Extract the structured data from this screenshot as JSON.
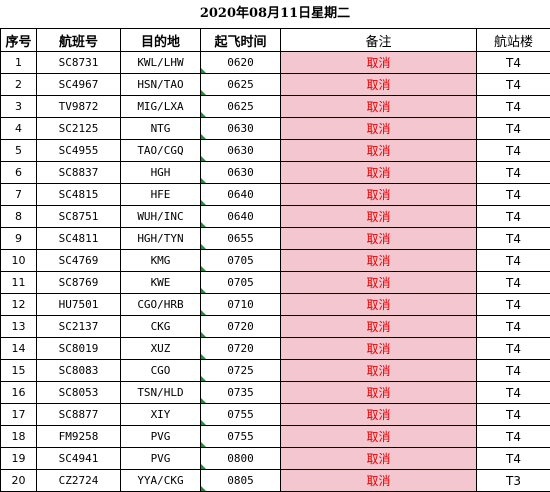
{
  "title": "2020年08月11日星期二",
  "headers": {
    "index": "序号",
    "flight": "航班号",
    "destination": "目的地",
    "departure": "起飞时间",
    "remarks": "备注",
    "terminal": "航站楼"
  },
  "colors": {
    "remarks_bg": "#f4c6cf",
    "remarks_text": "#e60000",
    "time_marker": "#1f8f3a"
  },
  "rows": [
    {
      "index": "1",
      "flight": "SC8731",
      "destination": "KWL/LHW",
      "departure": "0620",
      "remarks": "取消",
      "terminal": "T4"
    },
    {
      "index": "2",
      "flight": "SC4967",
      "destination": "HSN/TAO",
      "departure": "0625",
      "remarks": "取消",
      "terminal": "T4"
    },
    {
      "index": "3",
      "flight": "TV9872",
      "destination": "MIG/LXA",
      "departure": "0625",
      "remarks": "取消",
      "terminal": "T4"
    },
    {
      "index": "4",
      "flight": "SC2125",
      "destination": "NTG",
      "departure": "0630",
      "remarks": "取消",
      "terminal": "T4"
    },
    {
      "index": "5",
      "flight": "SC4955",
      "destination": "TAO/CGQ",
      "departure": "0630",
      "remarks": "取消",
      "terminal": "T4"
    },
    {
      "index": "6",
      "flight": "SC8837",
      "destination": "HGH",
      "departure": "0630",
      "remarks": "取消",
      "terminal": "T4"
    },
    {
      "index": "7",
      "flight": "SC4815",
      "destination": "HFE",
      "departure": "0640",
      "remarks": "取消",
      "terminal": "T4"
    },
    {
      "index": "8",
      "flight": "SC8751",
      "destination": "WUH/INC",
      "departure": "0640",
      "remarks": "取消",
      "terminal": "T4"
    },
    {
      "index": "9",
      "flight": "SC4811",
      "destination": "HGH/TYN",
      "departure": "0655",
      "remarks": "取消",
      "terminal": "T4"
    },
    {
      "index": "10",
      "flight": "SC4769",
      "destination": "KMG",
      "departure": "0705",
      "remarks": "取消",
      "terminal": "T4"
    },
    {
      "index": "11",
      "flight": "SC8769",
      "destination": "KWE",
      "departure": "0705",
      "remarks": "取消",
      "terminal": "T4"
    },
    {
      "index": "12",
      "flight": "HU7501",
      "destination": "CGO/HRB",
      "departure": "0710",
      "remarks": "取消",
      "terminal": "T4"
    },
    {
      "index": "13",
      "flight": "SC2137",
      "destination": "CKG",
      "departure": "0720",
      "remarks": "取消",
      "terminal": "T4"
    },
    {
      "index": "14",
      "flight": "SC8019",
      "destination": "XUZ",
      "departure": "0720",
      "remarks": "取消",
      "terminal": "T4"
    },
    {
      "index": "15",
      "flight": "SC8083",
      "destination": "CGO",
      "departure": "0725",
      "remarks": "取消",
      "terminal": "T4"
    },
    {
      "index": "16",
      "flight": "SC8053",
      "destination": "TSN/HLD",
      "departure": "0735",
      "remarks": "取消",
      "terminal": "T4"
    },
    {
      "index": "17",
      "flight": "SC8877",
      "destination": "XIY",
      "departure": "0755",
      "remarks": "取消",
      "terminal": "T4"
    },
    {
      "index": "18",
      "flight": "FM9258",
      "destination": "PVG",
      "departure": "0755",
      "remarks": "取消",
      "terminal": "T4"
    },
    {
      "index": "19",
      "flight": "SC4941",
      "destination": "PVG",
      "departure": "0800",
      "remarks": "取消",
      "terminal": "T4"
    },
    {
      "index": "20",
      "flight": "CZ2724",
      "destination": "YYA/CKG",
      "departure": "0805",
      "remarks": "取消",
      "terminal": "T3"
    }
  ]
}
